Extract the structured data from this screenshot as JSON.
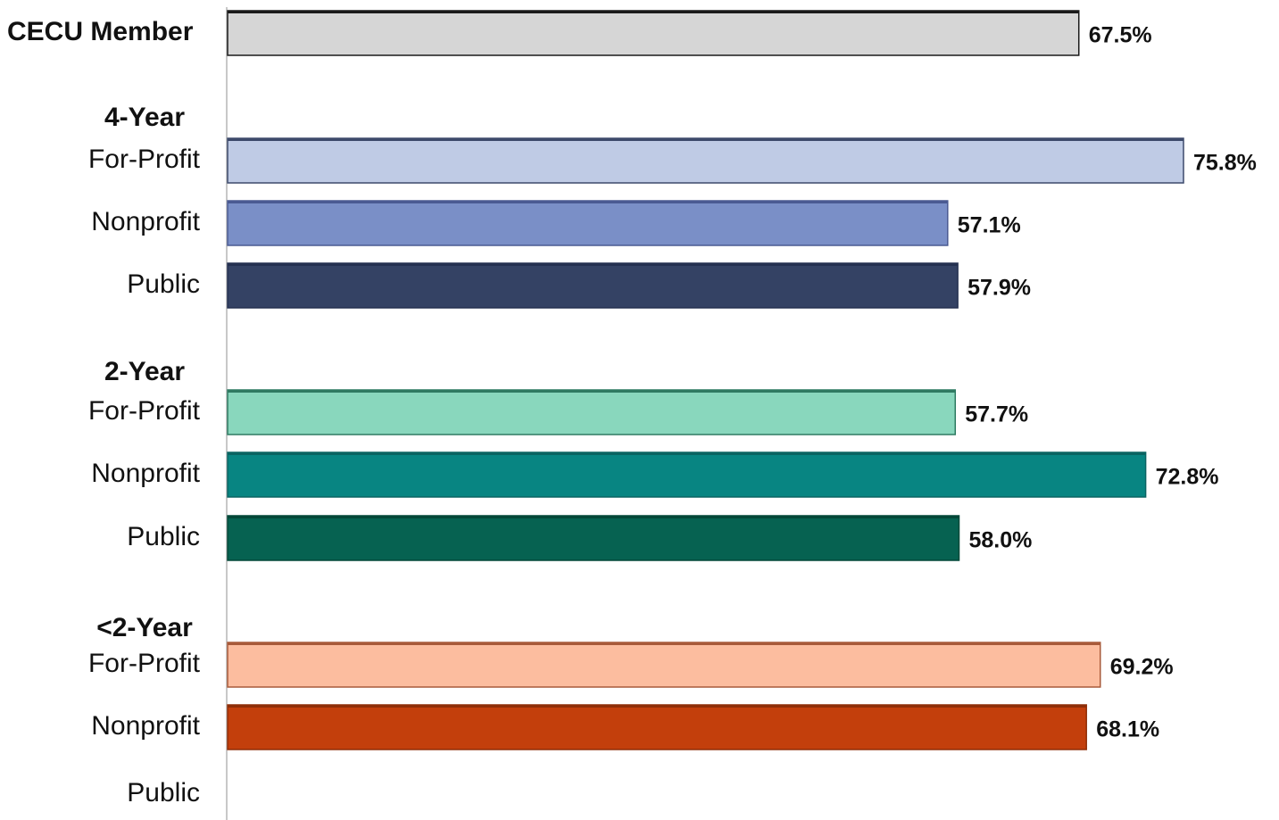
{
  "chart_data": {
    "type": "bar",
    "orientation": "horizontal",
    "xlim": [
      0,
      80
    ],
    "grid": false,
    "rows": [
      {
        "label": "CECU Member",
        "value": 67.5,
        "display": "67.5%",
        "color": "#d6d6d6",
        "stroke": "#1a1a1a",
        "bold_label": true
      },
      {
        "group": "4-Year"
      },
      {
        "label": "For-Profit",
        "value": 75.8,
        "display": "75.8%",
        "color": "#bfcbe5",
        "stroke": "#3d4a6b"
      },
      {
        "label": "Nonprofit",
        "value": 57.1,
        "display": "57.1%",
        "color": "#7a8fc7",
        "stroke": "#4a5a92"
      },
      {
        "label": "Public",
        "value": 57.9,
        "display": "57.9%",
        "color": "#344264",
        "stroke": "#243050"
      },
      {
        "group": "2-Year"
      },
      {
        "label": "For-Profit",
        "value": 57.7,
        "display": "57.7%",
        "color": "#89d7bd",
        "stroke": "#2f7a62"
      },
      {
        "label": "Nonprofit",
        "value": 72.8,
        "display": "72.8%",
        "color": "#088582",
        "stroke": "#0a6462"
      },
      {
        "label": "Public",
        "value": 58.0,
        "display": "58.0%",
        "color": "#066251",
        "stroke": "#044838"
      },
      {
        "group": "<2-Year"
      },
      {
        "label": "For-Profit",
        "value": 69.2,
        "display": "69.2%",
        "color": "#fcbd9f",
        "stroke": "#a85a3a"
      },
      {
        "label": "Nonprofit",
        "value": 68.1,
        "display": "68.1%",
        "color": "#c33f0c",
        "stroke": "#8f2e08"
      },
      {
        "label": "Public",
        "value": null,
        "display": "",
        "color": "#999999",
        "stroke": "#666666"
      }
    ]
  }
}
